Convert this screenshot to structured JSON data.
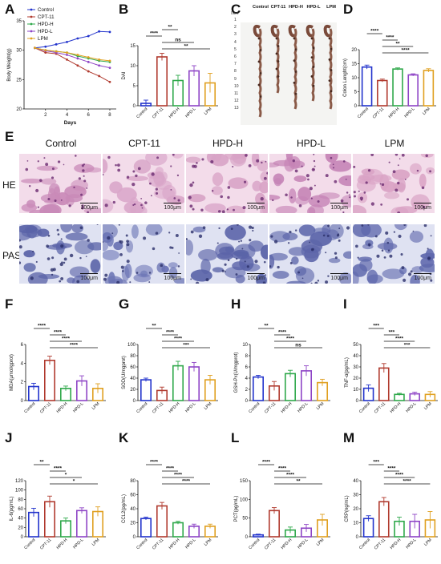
{
  "colors": {
    "Control": "#2233cc",
    "CPT-11": "#b03a2e",
    "HPD-H": "#2ea84a",
    "HPD-L": "#8e44c6",
    "LPM": "#e0a020",
    "sig": "#111111"
  },
  "panels": {
    "A": "A",
    "B": "B",
    "C": "C",
    "D": "D",
    "E": "E",
    "F": "F",
    "G": "G",
    "H": "H",
    "I": "I",
    "J": "J",
    "K": "K",
    "L": "L",
    "M": "M"
  },
  "groups": [
    "Control",
    "CPT-11",
    "HPD-H",
    "HPD-L",
    "LPM"
  ],
  "panelA": {
    "ylabel": "Body Weight(g)",
    "xlabel": "Days",
    "legend": [
      "Control",
      "CPT-11",
      "HPD-H",
      "HPD-L",
      "LPM"
    ]
  },
  "panelC": {
    "header": [
      "Control",
      "CPT-11",
      "HPD-H",
      "HPD-L",
      "LPM"
    ],
    "ruler_unit": "0cm",
    "ruler": [
      "1",
      "2",
      "3",
      "4",
      "5",
      "6",
      "7",
      "8",
      "9",
      "10",
      "11",
      "12",
      "13"
    ]
  },
  "panelE": {
    "columns": [
      "Control",
      "CPT-11",
      "HPD-H",
      "HPD-L",
      "LPM"
    ],
    "rows": [
      "HE",
      "PAS"
    ],
    "scale": "100μm",
    "he_colors": [
      "#c98ab8",
      "#d9a6c9",
      "#d8a3c6",
      "#c583b6",
      "#d9a2c4"
    ],
    "pas_colors": [
      "#5a63a8",
      "#6a73b4",
      "#5a63a8",
      "#5d66aa",
      "#5f68ad"
    ]
  },
  "chart_data": [
    {
      "panel": "A",
      "type": "line",
      "x": [
        1,
        2,
        3,
        4,
        5,
        6,
        7,
        8
      ],
      "xticks": [
        2,
        4,
        6,
        8
      ],
      "xlim": [
        0,
        8.6
      ],
      "ylim": [
        20,
        35
      ],
      "yticks": [
        20,
        25,
        30,
        35
      ],
      "xlabel": "Days",
      "ylabel": "Body Weight(g)",
      "series": [
        {
          "name": "Control",
          "values": [
            30.4,
            30.6,
            31.0,
            31.4,
            32.0,
            32.4,
            33.2,
            33.1
          ]
        },
        {
          "name": "CPT-11",
          "values": [
            30.4,
            29.6,
            29.4,
            28.4,
            27.4,
            26.4,
            25.6,
            24.6
          ]
        },
        {
          "name": "HPD-H",
          "values": [
            30.4,
            30.0,
            29.8,
            29.6,
            29.0,
            28.6,
            28.2,
            28.0
          ]
        },
        {
          "name": "HPD-L",
          "values": [
            30.4,
            29.9,
            29.6,
            29.2,
            28.6,
            28.0,
            27.4,
            27.0
          ]
        },
        {
          "name": "LPM",
          "values": [
            30.4,
            30.0,
            29.8,
            29.6,
            29.2,
            28.8,
            28.4,
            28.2
          ]
        }
      ],
      "legend": "top-left"
    },
    {
      "panel": "B",
      "type": "bar",
      "ylabel": "DAI",
      "categories": [
        "Control",
        "CPT-11",
        "HPD-H",
        "HPD-L",
        "LPM"
      ],
      "values": [
        0.6,
        12.2,
        6.3,
        8.7,
        5.7
      ],
      "errors": [
        0.8,
        0.9,
        1.3,
        1.3,
        2.4
      ],
      "ylim": [
        0,
        15
      ],
      "yticks": [
        0,
        5,
        10,
        15
      ],
      "sig": [
        {
          "from": 1,
          "to": 2,
          "label": "**"
        },
        {
          "from": 0,
          "to": 1,
          "label": "****"
        },
        {
          "from": 1,
          "to": 3,
          "label": "ns"
        },
        {
          "from": 1,
          "to": 4,
          "label": "**"
        }
      ]
    },
    {
      "panel": "D",
      "type": "bar",
      "ylabel": "Colon Lenght(cm)",
      "categories": [
        "Control",
        "CPT-11",
        "HPD-H",
        "HPD-L",
        "LPM"
      ],
      "values": [
        13.8,
        9.0,
        13.1,
        11.0,
        12.6
      ],
      "errors": [
        0.7,
        0.5,
        0.4,
        0.4,
        0.6
      ],
      "ylim": [
        0,
        20
      ],
      "yticks": [
        0,
        5,
        10,
        15,
        20
      ],
      "sig": [
        {
          "from": 0,
          "to": 1,
          "label": "****"
        },
        {
          "from": 1,
          "to": 2,
          "label": "****"
        },
        {
          "from": 1,
          "to": 3,
          "label": "**"
        },
        {
          "from": 1,
          "to": 4,
          "label": "****"
        }
      ]
    },
    {
      "panel": "F",
      "type": "bar",
      "ylabel": "MDA(μmol/gprot)",
      "categories": [
        "Control",
        "CPT-11",
        "HPD-H",
        "HPD-L",
        "LPM"
      ],
      "values": [
        1.5,
        4.3,
        1.3,
        2.1,
        1.3
      ],
      "errors": [
        0.35,
        0.45,
        0.25,
        0.55,
        0.5
      ],
      "ylim": [
        0,
        6
      ],
      "yticks": [
        0,
        2,
        4,
        6
      ],
      "sig": [
        {
          "from": 0,
          "to": 1,
          "label": "****"
        },
        {
          "from": 1,
          "to": 2,
          "label": "****"
        },
        {
          "from": 1,
          "to": 3,
          "label": "****"
        },
        {
          "from": 1,
          "to": 4,
          "label": "****"
        }
      ]
    },
    {
      "panel": "G",
      "type": "bar",
      "ylabel": "SOD(U/mgprot)",
      "categories": [
        "Control",
        "CPT-11",
        "HPD-H",
        "HPD-L",
        "LPM"
      ],
      "values": [
        37,
        18,
        62,
        60,
        37
      ],
      "errors": [
        3,
        6,
        8,
        8,
        8
      ],
      "ylim": [
        0,
        100
      ],
      "yticks": [
        0,
        20,
        40,
        60,
        80,
        100
      ],
      "sig": [
        {
          "from": 0,
          "to": 1,
          "label": "**"
        },
        {
          "from": 1,
          "to": 2,
          "label": "****"
        },
        {
          "from": 1,
          "to": 3,
          "label": "****"
        },
        {
          "from": 1,
          "to": 4,
          "label": "***"
        }
      ]
    },
    {
      "panel": "H",
      "type": "bar",
      "ylabel": "GSH-Px(U/mgprot)",
      "categories": [
        "Control",
        "CPT-11",
        "HPD-H",
        "HPD-L",
        "LPM"
      ],
      "values": [
        4.2,
        2.6,
        4.8,
        5.3,
        3.2
      ],
      "errors": [
        0.3,
        0.8,
        0.6,
        0.9,
        0.6
      ],
      "ylim": [
        0,
        10
      ],
      "yticks": [
        0,
        2,
        4,
        6,
        8,
        10
      ],
      "sig": [
        {
          "from": 0,
          "to": 1,
          "label": "**"
        },
        {
          "from": 1,
          "to": 2,
          "label": "****"
        },
        {
          "from": 1,
          "to": 3,
          "label": "****"
        },
        {
          "from": 1,
          "to": 4,
          "label": "ns"
        }
      ]
    },
    {
      "panel": "I",
      "type": "bar",
      "ylabel": "TNF-α(pg/mL)",
      "categories": [
        "Control",
        "CPT-11",
        "HPD-H",
        "HPD-L",
        "LPM"
      ],
      "values": [
        11,
        29,
        5.5,
        6,
        5.5
      ],
      "errors": [
        3,
        4,
        1,
        1.5,
        2.5
      ],
      "ylim": [
        0,
        50
      ],
      "yticks": [
        0,
        10,
        20,
        30,
        40,
        50
      ],
      "sig": [
        {
          "from": 0,
          "to": 1,
          "label": "***"
        },
        {
          "from": 1,
          "to": 2,
          "label": "***"
        },
        {
          "from": 1,
          "to": 3,
          "label": "****"
        },
        {
          "from": 1,
          "to": 4,
          "label": "***"
        }
      ]
    },
    {
      "panel": "J",
      "type": "bar",
      "ylabel": "IL-6(pg/mL)",
      "categories": [
        "Control",
        "CPT-11",
        "HPD-H",
        "HPD-L",
        "LPM"
      ],
      "values": [
        52,
        75,
        34,
        56,
        54
      ],
      "errors": [
        9,
        12,
        6,
        6,
        10
      ],
      "ylim": [
        0,
        120
      ],
      "yticks": [
        0,
        20,
        40,
        60,
        80,
        100,
        120
      ],
      "sig": [
        {
          "from": 0,
          "to": 1,
          "label": "**"
        },
        {
          "from": 1,
          "to": 2,
          "label": "****"
        },
        {
          "from": 1,
          "to": 3,
          "label": "*"
        },
        {
          "from": 1,
          "to": 4,
          "label": "*"
        }
      ]
    },
    {
      "panel": "K",
      "type": "bar",
      "ylabel": "CCL2(pg/mL)",
      "categories": [
        "Control",
        "CPT-11",
        "HPD-H",
        "HPD-L",
        "LPM"
      ],
      "values": [
        26,
        44,
        20,
        15,
        15
      ],
      "errors": [
        2,
        5,
        2,
        3,
        3
      ],
      "ylim": [
        0,
        80
      ],
      "yticks": [
        0,
        20,
        40,
        60,
        80
      ],
      "sig": [
        {
          "from": 0,
          "to": 1,
          "label": "****"
        },
        {
          "from": 1,
          "to": 2,
          "label": "****"
        },
        {
          "from": 1,
          "to": 3,
          "label": "****"
        },
        {
          "from": 1,
          "to": 4,
          "label": "****"
        }
      ]
    },
    {
      "panel": "L",
      "type": "bar",
      "ylabel": "PCT(pg/mL)",
      "categories": [
        "Control",
        "CPT-11",
        "HPD-H",
        "HPD-L",
        "LPM"
      ],
      "values": [
        5,
        70,
        18,
        23,
        45
      ],
      "errors": [
        2,
        8,
        8,
        10,
        15
      ],
      "ylim": [
        0,
        150
      ],
      "yticks": [
        0,
        50,
        100,
        150
      ],
      "sig": [
        {
          "from": 0,
          "to": 1,
          "label": "****"
        },
        {
          "from": 1,
          "to": 2,
          "label": "****"
        },
        {
          "from": 1,
          "to": 3,
          "label": "****"
        },
        {
          "from": 1,
          "to": 4,
          "label": "**"
        }
      ]
    },
    {
      "panel": "M",
      "type": "bar",
      "ylabel": "CRP(ng/mL)",
      "categories": [
        "Control",
        "CPT-11",
        "HPD-H",
        "HPD-L",
        "LPM"
      ],
      "values": [
        13,
        25,
        11,
        11,
        12
      ],
      "errors": [
        2,
        3,
        3,
        5,
        6
      ],
      "ylim": [
        0,
        40
      ],
      "yticks": [
        0,
        10,
        20,
        30,
        40
      ],
      "sig": [
        {
          "from": 0,
          "to": 1,
          "label": "***"
        },
        {
          "from": 1,
          "to": 2,
          "label": "****"
        },
        {
          "from": 1,
          "to": 3,
          "label": "****"
        },
        {
          "from": 1,
          "to": 4,
          "label": "****"
        }
      ]
    }
  ]
}
